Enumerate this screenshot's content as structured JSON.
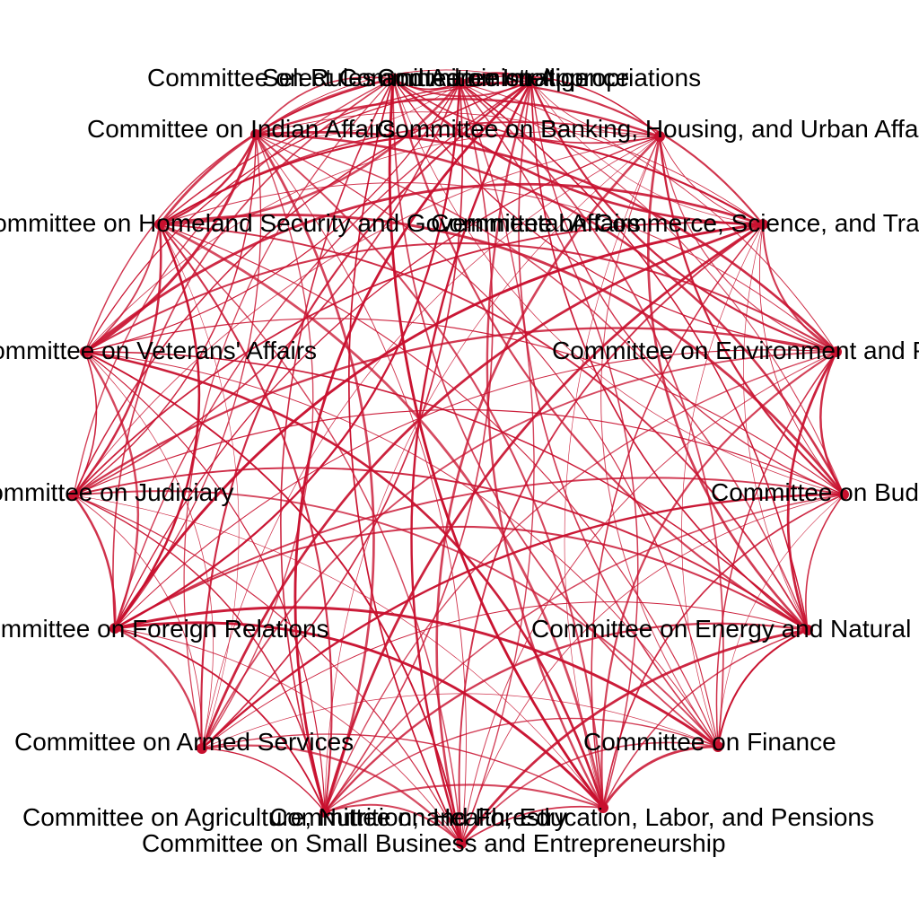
{
  "colors": {
    "edge": "#c8102e",
    "node": "#c8102e",
    "label": "#000000",
    "background": "#ffffff"
  },
  "nodes": [
    {
      "id": "rules",
      "label": "Committee on Rules and Administration"
    },
    {
      "id": "approps",
      "label": "Committee on Appropriations"
    },
    {
      "id": "banking",
      "label": "Committee on Banking, Housing, and Urban Affairs"
    },
    {
      "id": "commerce",
      "label": "Committee on Commerce, Science, and Transportation"
    },
    {
      "id": "environment",
      "label": "Committee on Environment and Public Works"
    },
    {
      "id": "budget",
      "label": "Committee on Budget"
    },
    {
      "id": "energy",
      "label": "Committee on Energy and Natural Resources"
    },
    {
      "id": "finance",
      "label": "Committee on Finance"
    },
    {
      "id": "help",
      "label": "Committee on Health, Education, Labor, and Pensions"
    },
    {
      "id": "smallbiz",
      "label": "Committee on Small Business and Entrepreneurship"
    },
    {
      "id": "agriculture",
      "label": "Committee on Agriculture, Nutrition, and Forestry"
    },
    {
      "id": "armed",
      "label": "Committee on Armed Services"
    },
    {
      "id": "foreign",
      "label": "Committee on Foreign Relations"
    },
    {
      "id": "judiciary",
      "label": "Committee on Judiciary"
    },
    {
      "id": "veterans",
      "label": "Committee on Veterans' Affairs"
    },
    {
      "id": "homeland",
      "label": "Committee on Homeland Security and Governmental Affairs"
    },
    {
      "id": "indian",
      "label": "Committee on Indian Affairs"
    },
    {
      "id": "intelligence",
      "label": "Select Committee on Intelligence"
    }
  ]
}
